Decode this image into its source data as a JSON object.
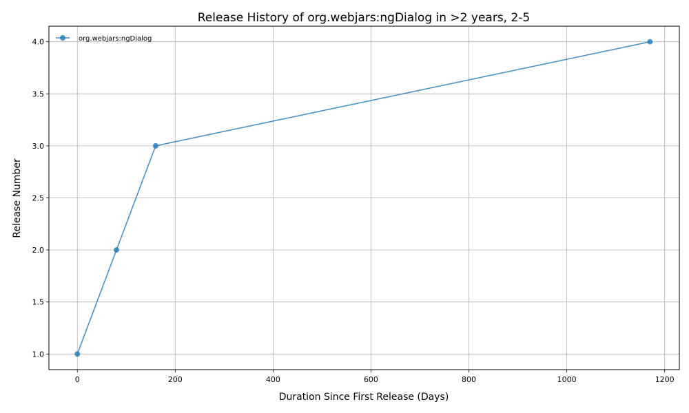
{
  "chart_data": {
    "type": "line",
    "title": "Release History of org.webjars:ngDialog in >2 years, 2-5",
    "xlabel": "Duration Since First Release (Days)",
    "ylabel": "Release Number",
    "xlim": [
      -58,
      1230
    ],
    "ylim": [
      0.85,
      4.15
    ],
    "xticks": [
      0,
      200,
      400,
      600,
      800,
      1000,
      1200
    ],
    "yticks": [
      1.0,
      1.5,
      2.0,
      2.5,
      3.0,
      3.5,
      4.0
    ],
    "xtick_labels": [
      "0",
      "200",
      "400",
      "600",
      "800",
      "1000",
      "1200"
    ],
    "ytick_labels": [
      "1.0",
      "1.5",
      "2.0",
      "2.5",
      "3.0",
      "3.5",
      "4.0"
    ],
    "grid": true,
    "legend_position": "top-left",
    "series": [
      {
        "name": "org.webjars:ngDialog",
        "color": "#1f77b4",
        "marker": "circle",
        "x": [
          0,
          80,
          160,
          1170
        ],
        "y": [
          1,
          2,
          3,
          4
        ]
      }
    ]
  }
}
